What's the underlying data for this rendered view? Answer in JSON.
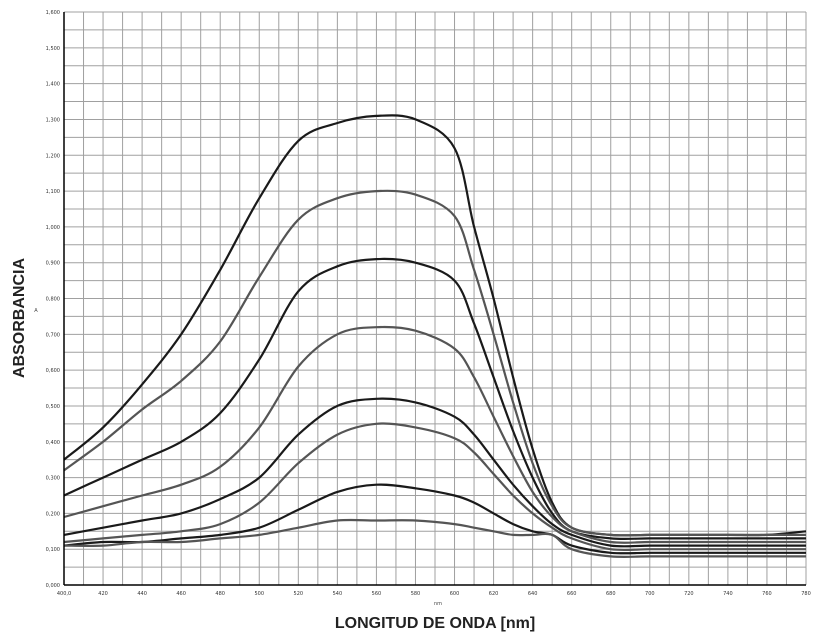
{
  "chart_data": {
    "type": "line",
    "xlabel": "LONGITUD DE ONDA [nm]",
    "ylabel": "ABSORBANCIA",
    "x_unit_small": "nm",
    "y_unit_small": "A",
    "xlim": [
      400,
      780
    ],
    "ylim": [
      0,
      1.6
    ],
    "grid": true,
    "legend": "none",
    "x_ticks": [
      "400,0",
      "420",
      "440",
      "460",
      "480",
      "500",
      "520",
      "540",
      "560",
      "580",
      "600",
      "620",
      "640",
      "660",
      "680",
      "700",
      "720",
      "740",
      "760",
      "780"
    ],
    "y_ticks": [
      "0,000",
      "0,100",
      "0,200",
      "0,300",
      "0,400",
      "0,500",
      "0,600",
      "0,700",
      "0,800",
      "0,900",
      "1,000",
      "1,100",
      "1,200",
      "1,300",
      "1,400",
      "1,500",
      "1,600"
    ],
    "series": [
      {
        "x": [
          400,
          420,
          440,
          460,
          480,
          500,
          520,
          540,
          560,
          580,
          600,
          610,
          620,
          630,
          640,
          650,
          660,
          680,
          700,
          720,
          740,
          760,
          780
        ],
        "y": [
          0.35,
          0.44,
          0.56,
          0.7,
          0.88,
          1.08,
          1.24,
          1.29,
          1.31,
          1.3,
          1.22,
          1.0,
          0.8,
          0.58,
          0.38,
          0.23,
          0.16,
          0.14,
          0.14,
          0.14,
          0.14,
          0.14,
          0.15
        ]
      },
      {
        "x": [
          400,
          420,
          440,
          460,
          480,
          500,
          520,
          540,
          560,
          580,
          600,
          610,
          620,
          630,
          640,
          650,
          660,
          680,
          700,
          720,
          740,
          760,
          780
        ],
        "y": [
          0.32,
          0.4,
          0.49,
          0.57,
          0.68,
          0.86,
          1.02,
          1.08,
          1.1,
          1.09,
          1.03,
          0.88,
          0.7,
          0.51,
          0.34,
          0.22,
          0.16,
          0.14,
          0.14,
          0.14,
          0.14,
          0.14,
          0.14
        ]
      },
      {
        "x": [
          400,
          420,
          440,
          460,
          480,
          500,
          520,
          540,
          560,
          580,
          600,
          610,
          620,
          630,
          640,
          650,
          660,
          680,
          700,
          720,
          740,
          760,
          780
        ],
        "y": [
          0.25,
          0.3,
          0.35,
          0.4,
          0.48,
          0.63,
          0.82,
          0.89,
          0.91,
          0.9,
          0.85,
          0.73,
          0.58,
          0.43,
          0.3,
          0.2,
          0.15,
          0.13,
          0.13,
          0.13,
          0.13,
          0.13,
          0.13
        ]
      },
      {
        "x": [
          400,
          420,
          440,
          460,
          480,
          500,
          520,
          540,
          560,
          580,
          600,
          610,
          620,
          630,
          640,
          650,
          660,
          680,
          700,
          720,
          740,
          760,
          780
        ],
        "y": [
          0.19,
          0.22,
          0.25,
          0.28,
          0.33,
          0.44,
          0.61,
          0.7,
          0.72,
          0.71,
          0.66,
          0.58,
          0.47,
          0.36,
          0.26,
          0.19,
          0.15,
          0.12,
          0.12,
          0.12,
          0.12,
          0.12,
          0.12
        ]
      },
      {
        "x": [
          400,
          420,
          440,
          460,
          480,
          500,
          520,
          540,
          560,
          580,
          600,
          610,
          620,
          630,
          640,
          650,
          660,
          680,
          700,
          720,
          740,
          760,
          780
        ],
        "y": [
          0.14,
          0.16,
          0.18,
          0.2,
          0.24,
          0.3,
          0.42,
          0.5,
          0.52,
          0.51,
          0.47,
          0.42,
          0.35,
          0.28,
          0.22,
          0.17,
          0.14,
          0.11,
          0.11,
          0.11,
          0.11,
          0.11,
          0.11
        ]
      },
      {
        "x": [
          400,
          420,
          440,
          460,
          480,
          500,
          520,
          540,
          560,
          580,
          600,
          610,
          620,
          630,
          640,
          650,
          660,
          680,
          700,
          720,
          740,
          760,
          780
        ],
        "y": [
          0.12,
          0.13,
          0.14,
          0.15,
          0.17,
          0.23,
          0.34,
          0.42,
          0.45,
          0.44,
          0.41,
          0.37,
          0.31,
          0.25,
          0.2,
          0.16,
          0.13,
          0.1,
          0.1,
          0.1,
          0.1,
          0.1,
          0.1
        ]
      },
      {
        "x": [
          400,
          420,
          440,
          460,
          480,
          500,
          520,
          540,
          560,
          580,
          600,
          610,
          620,
          630,
          640,
          650,
          660,
          680,
          700,
          720,
          740,
          760,
          780
        ],
        "y": [
          0.11,
          0.12,
          0.12,
          0.13,
          0.14,
          0.16,
          0.21,
          0.26,
          0.28,
          0.27,
          0.25,
          0.23,
          0.2,
          0.17,
          0.15,
          0.14,
          0.11,
          0.09,
          0.09,
          0.09,
          0.09,
          0.09,
          0.09
        ]
      },
      {
        "x": [
          400,
          420,
          440,
          460,
          480,
          500,
          520,
          540,
          560,
          580,
          600,
          610,
          620,
          630,
          640,
          650,
          660,
          680,
          700,
          720,
          740,
          760,
          780
        ],
        "y": [
          0.11,
          0.11,
          0.12,
          0.12,
          0.13,
          0.14,
          0.16,
          0.18,
          0.18,
          0.18,
          0.17,
          0.16,
          0.15,
          0.14,
          0.14,
          0.14,
          0.1,
          0.08,
          0.08,
          0.08,
          0.08,
          0.08,
          0.08
        ]
      }
    ],
    "colors": {
      "line": "#1a1a1a",
      "grid": "#a0a0a0",
      "axis": "#000000"
    }
  }
}
